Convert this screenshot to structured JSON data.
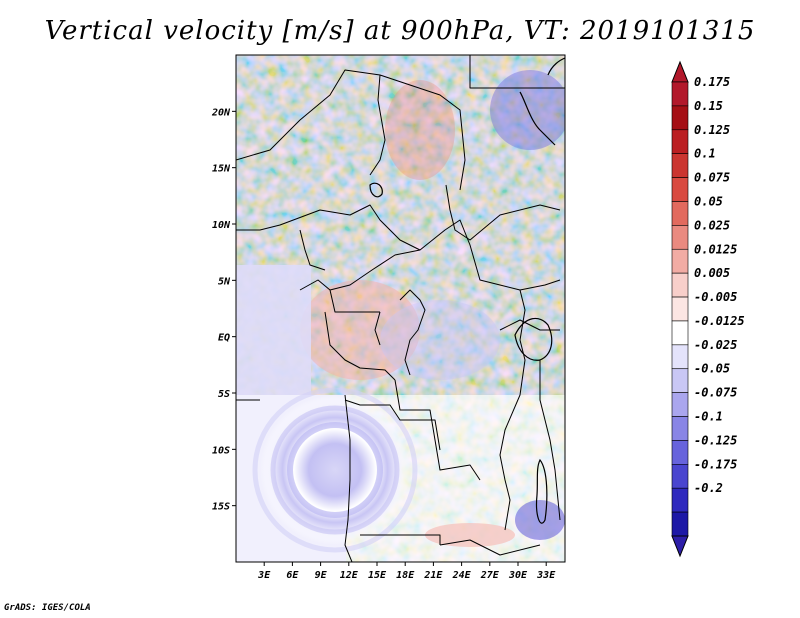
{
  "title": "Vertical velocity [m/s] at 900hPa, VT: 2019101315",
  "credit": "GrADS: IGES/COLA",
  "map": {
    "lon_range": [
      0,
      35
    ],
    "lat_range": [
      -20,
      25
    ],
    "lat_ticks": [
      {
        "value": 20,
        "label": "20N"
      },
      {
        "value": 15,
        "label": "15N"
      },
      {
        "value": 10,
        "label": "10N"
      },
      {
        "value": 5,
        "label": "5N"
      },
      {
        "value": 0,
        "label": "EQ"
      },
      {
        "value": -5,
        "label": "5S"
      },
      {
        "value": -10,
        "label": "10S"
      },
      {
        "value": -15,
        "label": "15S"
      }
    ],
    "lon_ticks": [
      {
        "value": 3,
        "label": "3E"
      },
      {
        "value": 6,
        "label": "6E"
      },
      {
        "value": 9,
        "label": "9E"
      },
      {
        "value": 12,
        "label": "12E"
      },
      {
        "value": 15,
        "label": "15E"
      },
      {
        "value": 18,
        "label": "18E"
      },
      {
        "value": 21,
        "label": "21E"
      },
      {
        "value": 24,
        "label": "24E"
      },
      {
        "value": 27,
        "label": "27E"
      },
      {
        "value": 30,
        "label": "30E"
      },
      {
        "value": 33,
        "label": "33E"
      }
    ]
  },
  "colorbar": {
    "levels": [
      {
        "label": "0.175",
        "color": "#a50f15"
      },
      {
        "label": "0.15",
        "color": "#bb1f22"
      },
      {
        "label": "0.125",
        "color": "#cb3530"
      },
      {
        "label": "0.1",
        "color": "#d94a40"
      },
      {
        "label": "0.075",
        "color": "#e26a5e"
      },
      {
        "label": "0.05",
        "color": "#ea8a80"
      },
      {
        "label": "0.025",
        "color": "#f2aca4"
      },
      {
        "label": "0.0125",
        "color": "#f8cfca"
      },
      {
        "label": "0.005",
        "color": "#fce6e3"
      },
      {
        "label": "-0.005",
        "color": "#ffffff"
      },
      {
        "label": "-0.0125",
        "color": "#e4e3fb"
      },
      {
        "label": "-0.025",
        "color": "#c9c7f5"
      },
      {
        "label": "-0.05",
        "color": "#aaa6ee"
      },
      {
        "label": "-0.075",
        "color": "#8985e6"
      },
      {
        "label": "-0.1",
        "color": "#6763dc"
      },
      {
        "label": "-0.125",
        "color": "#4a45cf"
      },
      {
        "label": "-0.175",
        "color": "#2f29be"
      },
      {
        "label": "-0.2",
        "color": "#1d18a6"
      }
    ],
    "upper_color": "#b2182b",
    "lower_color": "#2d1ea8"
  }
}
